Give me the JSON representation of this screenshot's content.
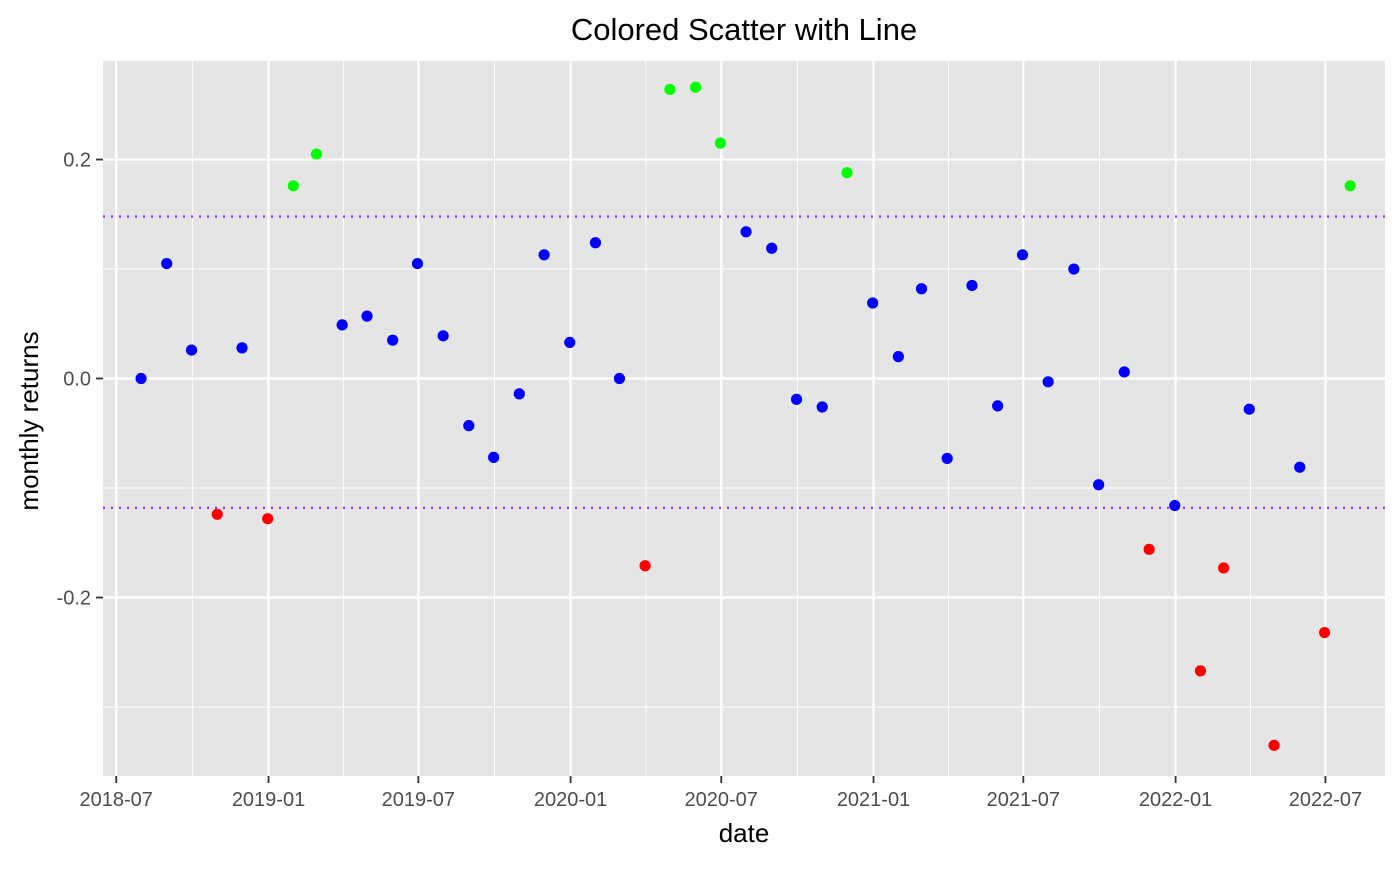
{
  "chart_data": {
    "type": "scatter",
    "title": "Colored Scatter with Line",
    "xlabel": "date",
    "ylabel": "monthly returns",
    "x_ticks": [
      "2018-07",
      "2019-01",
      "2019-07",
      "2020-01",
      "2020-07",
      "2021-01",
      "2021-07",
      "2022-01",
      "2022-07"
    ],
    "y_ticks": [
      "-0.2",
      "0.0",
      "0.2"
    ],
    "xlim": [
      "2018-06-15",
      "2022-09-11"
    ],
    "ylim": [
      -0.363,
      0.29
    ],
    "grid": true,
    "background": "#e5e5e5",
    "reference_lines": [
      0.148,
      -0.118
    ],
    "reference_line_color": "#9b30ff",
    "colors": {
      "high": "#00ff00",
      "mid": "#0000ff",
      "low": "#ff0000"
    },
    "points": [
      {
        "x": "2018-07-31",
        "y": 0.0,
        "group": "mid"
      },
      {
        "x": "2018-08-31",
        "y": 0.105,
        "group": "mid"
      },
      {
        "x": "2018-09-30",
        "y": 0.026,
        "group": "mid"
      },
      {
        "x": "2018-10-31",
        "y": -0.124,
        "group": "low"
      },
      {
        "x": "2018-11-30",
        "y": 0.028,
        "group": "mid"
      },
      {
        "x": "2018-12-31",
        "y": -0.128,
        "group": "low"
      },
      {
        "x": "2019-01-31",
        "y": 0.176,
        "group": "high"
      },
      {
        "x": "2019-02-28",
        "y": 0.205,
        "group": "high"
      },
      {
        "x": "2019-03-31",
        "y": 0.049,
        "group": "mid"
      },
      {
        "x": "2019-04-30",
        "y": 0.057,
        "group": "mid"
      },
      {
        "x": "2019-05-31",
        "y": 0.035,
        "group": "mid"
      },
      {
        "x": "2019-06-30",
        "y": 0.105,
        "group": "mid"
      },
      {
        "x": "2019-07-31",
        "y": 0.039,
        "group": "mid"
      },
      {
        "x": "2019-08-31",
        "y": -0.043,
        "group": "mid"
      },
      {
        "x": "2019-09-30",
        "y": -0.072,
        "group": "mid"
      },
      {
        "x": "2019-10-31",
        "y": -0.014,
        "group": "mid"
      },
      {
        "x": "2019-11-30",
        "y": 0.113,
        "group": "mid"
      },
      {
        "x": "2019-12-31",
        "y": 0.033,
        "group": "mid"
      },
      {
        "x": "2020-01-31",
        "y": 0.124,
        "group": "mid"
      },
      {
        "x": "2020-02-29",
        "y": 0.0,
        "group": "mid"
      },
      {
        "x": "2020-03-31",
        "y": -0.171,
        "group": "low"
      },
      {
        "x": "2020-04-30",
        "y": 0.264,
        "group": "high"
      },
      {
        "x": "2020-05-31",
        "y": 0.266,
        "group": "high"
      },
      {
        "x": "2020-06-30",
        "y": 0.215,
        "group": "high"
      },
      {
        "x": "2020-07-31",
        "y": 0.134,
        "group": "mid"
      },
      {
        "x": "2020-08-31",
        "y": 0.119,
        "group": "mid"
      },
      {
        "x": "2020-09-30",
        "y": -0.019,
        "group": "mid"
      },
      {
        "x": "2020-10-31",
        "y": -0.026,
        "group": "mid"
      },
      {
        "x": "2020-11-30",
        "y": 0.188,
        "group": "high"
      },
      {
        "x": "2020-12-31",
        "y": 0.069,
        "group": "mid"
      },
      {
        "x": "2021-01-31",
        "y": 0.02,
        "group": "mid"
      },
      {
        "x": "2021-02-28",
        "y": 0.082,
        "group": "mid"
      },
      {
        "x": "2021-03-31",
        "y": -0.073,
        "group": "mid"
      },
      {
        "x": "2021-04-30",
        "y": 0.085,
        "group": "mid"
      },
      {
        "x": "2021-05-31",
        "y": -0.025,
        "group": "mid"
      },
      {
        "x": "2021-06-30",
        "y": 0.113,
        "group": "mid"
      },
      {
        "x": "2021-07-31",
        "y": -0.003,
        "group": "mid"
      },
      {
        "x": "2021-08-31",
        "y": 0.1,
        "group": "mid"
      },
      {
        "x": "2021-09-30",
        "y": -0.097,
        "group": "mid"
      },
      {
        "x": "2021-10-31",
        "y": 0.006,
        "group": "mid"
      },
      {
        "x": "2021-11-30",
        "y": -0.156,
        "group": "low"
      },
      {
        "x": "2021-12-31",
        "y": -0.116,
        "group": "mid"
      },
      {
        "x": "2022-01-31",
        "y": -0.267,
        "group": "low"
      },
      {
        "x": "2022-02-28",
        "y": -0.173,
        "group": "low"
      },
      {
        "x": "2022-03-31",
        "y": -0.028,
        "group": "mid"
      },
      {
        "x": "2022-04-30",
        "y": -0.335,
        "group": "low"
      },
      {
        "x": "2022-05-31",
        "y": -0.081,
        "group": "mid"
      },
      {
        "x": "2022-06-30",
        "y": -0.232,
        "group": "low"
      },
      {
        "x": "2022-07-31",
        "y": 0.176,
        "group": "high"
      }
    ]
  }
}
